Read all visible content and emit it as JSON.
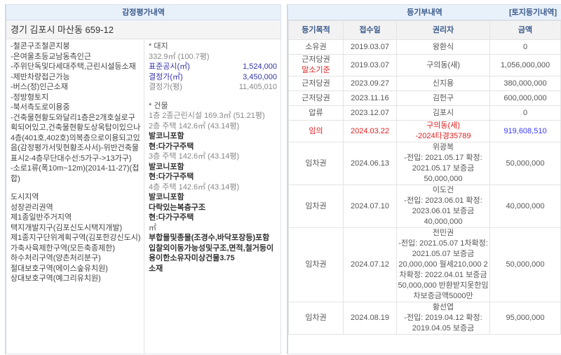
{
  "appraisal": {
    "title": "감정평가내역",
    "address": "경기 김포시 마산동 659-12",
    "notes": [
      "-철콘구조철콘지붕",
      "-은여울초등교남동측인근",
      "-주위단독및다세대주택,근린시설등소재",
      "-제반차량접근가능",
      "-버스(정)인근소재",
      "-정방형토지",
      "-북서측도로이용중",
      "-건축물현황도와달리1층은2개호실로구획되어있고,건축물현황도상옥탑이있으나4층(401호,402호)의복층으로이용되고있음(감정평가서및현황조사서)-위반건축물표시2-4층무단대수선:5가구->13가구)",
      "-소로1류(폭10m~12m)(2014-11-27)(접합)"
    ],
    "zones": [
      "도시지역",
      "성장관리권역",
      "제1종일반주거지역",
      "택지개발지구(김포신도시택지개발)",
      "제1종지구단위계획구역(김포한강신도시)",
      "가축사육제한구역(모든축종제한)",
      "하수처리구역(양촌처리분구)",
      "절대보호구역(에이스숲유치원)",
      "상대보호구역(예그리유치원)"
    ],
    "land": {
      "label": "* 대지",
      "area": "332.9㎡ (100.7평)",
      "std_label": "표준공시(㎡)",
      "std_value": "1,524,000",
      "det_label": "결정가(㎡)",
      "det_value": "3,450,000",
      "detp_label": "결정가(평)",
      "detp_value": "11,405,010"
    },
    "building": {
      "label": "* 건물",
      "floors": [
        {
          "desc": "1층 2종근린시설 169.3㎡ (51.21평)",
          "notes": []
        },
        {
          "desc": "2층 주택 142.6㎡ (43.14평)",
          "notes": [
            "발코니포함",
            "현:다가구주택"
          ]
        },
        {
          "desc": "3층 주택 142.6㎡ (43.14평)",
          "notes": [
            "발코니포함",
            "현:다가구주택"
          ]
        },
        {
          "desc": "4층 주택 142.6㎡ (43.14평)",
          "notes": [
            "발코니포함",
            "다락있는복층구조",
            "현:다가구주택"
          ]
        }
      ],
      "unit": "㎡",
      "extra": [
        "부합물및종물(조경수,바닥포장등)포함",
        "입찰외이동가능성및구조,면적,철거등이용이한소유자미상건물3.75",
        "소재"
      ]
    }
  },
  "registry": {
    "title": "등기부내역",
    "land_link": "[토지등기내역]",
    "columns": [
      "등기목적",
      "접수일",
      "권리자",
      "금액"
    ],
    "rows": [
      {
        "type": "소유권",
        "date": "2019.03.07",
        "holder": "왕환식",
        "amount": "0"
      },
      {
        "type": "근저당권",
        "type_note": "말소기준",
        "date": "2019.03.07",
        "holder": "구의동(새)",
        "amount": "1,056,000,000"
      },
      {
        "type": "근저당권",
        "date": "2023.09.27",
        "holder": "신지용",
        "amount": "380,000,000"
      },
      {
        "type": "근저당권",
        "date": "2023.11.16",
        "holder": "김헌구",
        "amount": "600,000,000"
      },
      {
        "type": "압류",
        "date": "2023.12.07",
        "holder": "김포시",
        "amount": "0"
      },
      {
        "type": "임의",
        "date": "2024.03.22",
        "holder": "구의동(새)",
        "holder_detail": "-2024타경35789",
        "amount": "919,608,510",
        "highlight": true
      },
      {
        "type": "임차권",
        "date": "2024.06.13",
        "holder": "위광복",
        "holder_detail": "-전입: 2021.05.17 확정: 2021.05.17 보증금 50,000,000",
        "amount": "50,000,000"
      },
      {
        "type": "임차권",
        "date": "2024.07.10",
        "holder": "이도건",
        "holder_detail": "-전입: 2023.06.01 확정: 2023.06.01 보증금 40,000,000",
        "amount": "40,000,000"
      },
      {
        "type": "임차권",
        "date": "2024.07.12",
        "holder": "전민권",
        "holder_detail": "-전입: 2021.05.07 1차확정: 2021.05.07 보증금 20,000,000 월세210,000 2차확정: 2022.04.01 보증금50,000,000 반환받지못한임차보증금액5000만",
        "amount": "50,000,000"
      },
      {
        "type": "임차권",
        "date": "2024.08.19",
        "holder": "황선엽",
        "holder_detail": "-전입: 2019.04.12 확정: 2019.04.05 보증금",
        "amount": "95,000,000"
      }
    ]
  },
  "colors": {
    "header_bg": "#e8f0fa",
    "header_text": "#3a5a8c",
    "red": "#e02020",
    "blue": "#3a3aff"
  }
}
